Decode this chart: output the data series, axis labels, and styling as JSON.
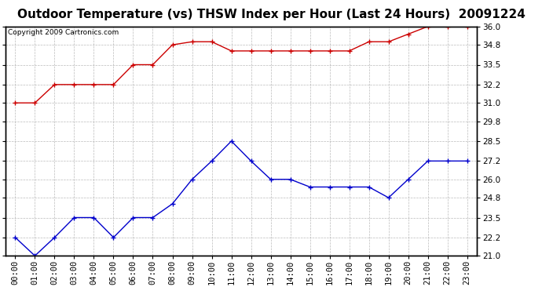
{
  "title": "Outdoor Temperature (vs) THSW Index per Hour (Last 24 Hours)  20091224",
  "copyright": "Copyright 2009 Cartronics.com",
  "x_labels": [
    "00:00",
    "01:00",
    "02:00",
    "03:00",
    "04:00",
    "05:00",
    "06:00",
    "07:00",
    "08:00",
    "09:00",
    "10:00",
    "11:00",
    "12:00",
    "13:00",
    "14:00",
    "15:00",
    "16:00",
    "17:00",
    "18:00",
    "19:00",
    "20:00",
    "21:00",
    "22:00",
    "23:00"
  ],
  "red_data": [
    31.0,
    31.0,
    32.2,
    32.2,
    32.2,
    32.2,
    33.5,
    33.5,
    34.8,
    35.0,
    35.0,
    34.4,
    34.4,
    34.4,
    34.4,
    34.4,
    34.4,
    34.4,
    35.0,
    35.0,
    35.5,
    36.0,
    36.0,
    36.0
  ],
  "blue_data": [
    22.2,
    21.0,
    22.2,
    23.5,
    23.5,
    22.2,
    23.5,
    23.5,
    24.4,
    26.0,
    27.2,
    28.5,
    27.2,
    26.0,
    26.0,
    25.5,
    25.5,
    25.5,
    25.5,
    24.8,
    26.0,
    27.2,
    27.2,
    27.2
  ],
  "red_color": "#cc0000",
  "blue_color": "#0000cc",
  "bg_color": "#ffffff",
  "plot_bg_color": "#ffffff",
  "grid_color": "#aaaaaa",
  "ylim": [
    21.0,
    36.0
  ],
  "yticks": [
    21.0,
    22.2,
    23.5,
    24.8,
    26.0,
    27.2,
    28.5,
    29.8,
    31.0,
    32.2,
    33.5,
    34.8,
    36.0
  ],
  "title_fontsize": 11,
  "copyright_fontsize": 6.5,
  "tick_fontsize": 7.5
}
